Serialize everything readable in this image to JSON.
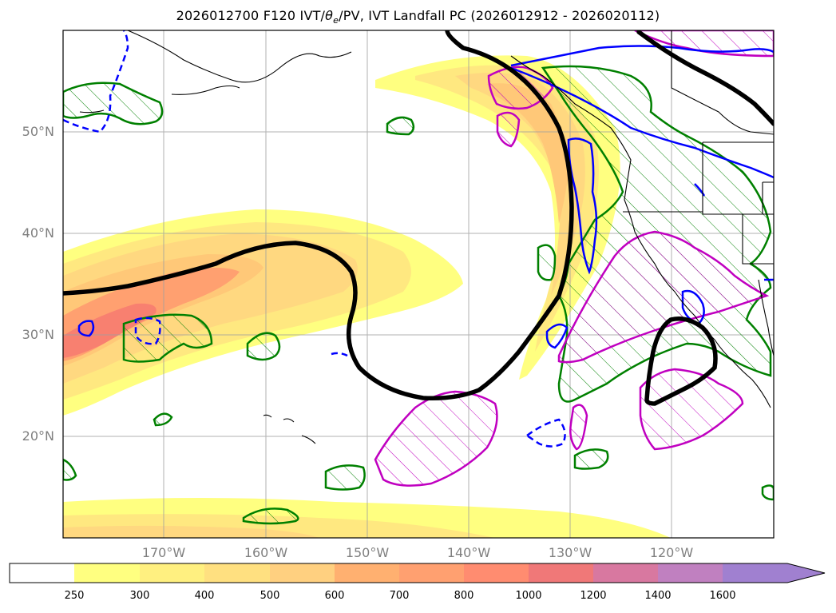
{
  "title": "2026012700 F120 IVT/θe/PV, IVT Landfall PC (2026012912 - 2026020112)",
  "title_parts": {
    "prefix": "2026012700 F120 IVT/",
    "theta": "θ",
    "theta_sub": "e",
    "suffix": "/PV, IVT Landfall PC (2026012912 - 2026020112)"
  },
  "latitude_labels": [
    {
      "value": 50,
      "text": "50°N"
    },
    {
      "value": 40,
      "text": "40°N"
    },
    {
      "value": 30,
      "text": "30°N"
    },
    {
      "value": 20,
      "text": "20°N"
    }
  ],
  "longitude_labels": [
    {
      "value": -170,
      "text": "170°W"
    },
    {
      "value": -160,
      "text": "160°W"
    },
    {
      "value": -150,
      "text": "150°W"
    },
    {
      "value": -140,
      "text": "140°W"
    },
    {
      "value": -130,
      "text": "130°W"
    },
    {
      "value": -120,
      "text": "120°W"
    }
  ],
  "colorbar": {
    "levels": [
      "250",
      "300",
      "400",
      "500",
      "600",
      "700",
      "800",
      "1000",
      "1200",
      "1400",
      "1600"
    ],
    "colors": [
      "#ffffff",
      "#ffff80",
      "#fff080",
      "#ffe080",
      "#ffd080",
      "#ffb070",
      "#ffa070",
      "#ff8c70",
      "#f07878",
      "#d878a0",
      "#c080c0",
      "#a080d0"
    ],
    "extend": "max"
  },
  "map": {
    "lat_range": [
      10,
      60
    ],
    "lon_range": [
      -180,
      -110
    ],
    "grid": true,
    "ivt_fill_colors": [
      "#ffff80",
      "#ffe880",
      "#ffd880",
      "#ffc878",
      "#ffa070",
      "#f88070"
    ],
    "contour_colors": {
      "thick_black": "#000000",
      "green_hatched": "#008000",
      "magenta_hatched": "#c000c0",
      "blue": "#0000ff"
    }
  }
}
